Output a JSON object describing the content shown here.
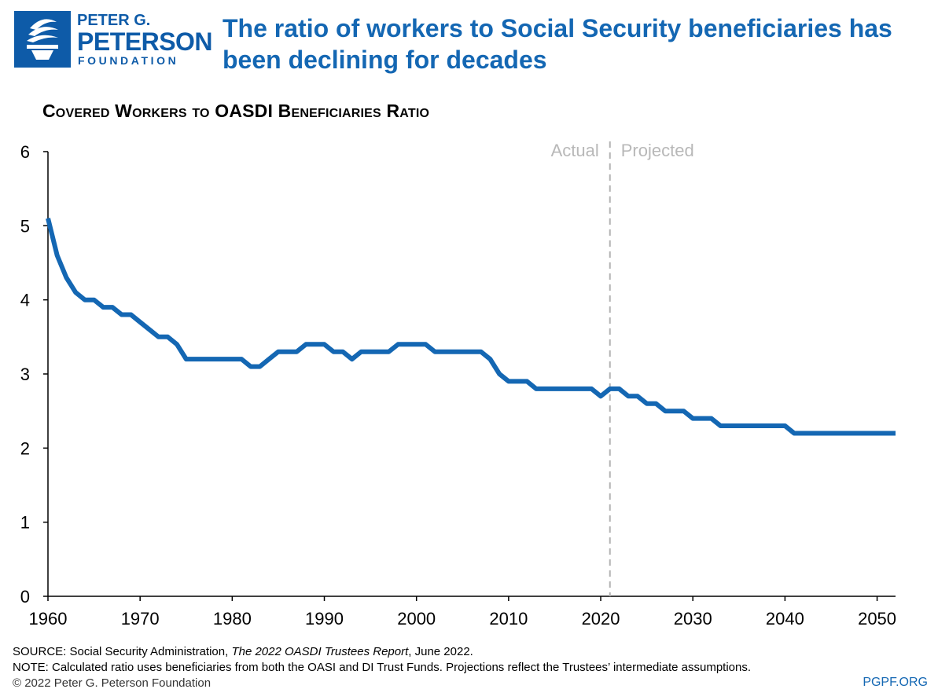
{
  "header": {
    "logo": {
      "line1": "PETER G.",
      "line2": "PETERSON",
      "line3": "FOUNDATION"
    },
    "title": "The ratio of workers to Social Security beneficiaries has been declining for decades"
  },
  "chart_data": {
    "type": "line",
    "title": "Covered Workers to OASDI Beneficiaries Ratio",
    "xlabel": "",
    "ylabel": "",
    "xlim": [
      1960,
      2052
    ],
    "ylim": [
      0,
      6
    ],
    "x_ticks": [
      1960,
      1970,
      1980,
      1990,
      2000,
      2010,
      2020,
      2030,
      2040,
      2050
    ],
    "y_ticks": [
      0,
      1,
      2,
      3,
      4,
      5,
      6
    ],
    "grid": false,
    "annotations": {
      "divider_year": 2021,
      "left_label": "Actual",
      "right_label": "Projected"
    },
    "series": [
      {
        "color": "#1467b3",
        "x": [
          1960,
          1961,
          1962,
          1963,
          1964,
          1965,
          1966,
          1967,
          1968,
          1969,
          1970,
          1971,
          1972,
          1973,
          1974,
          1975,
          1976,
          1977,
          1978,
          1979,
          1980,
          1981,
          1982,
          1983,
          1984,
          1985,
          1986,
          1987,
          1988,
          1989,
          1990,
          1991,
          1992,
          1993,
          1994,
          1995,
          1996,
          1997,
          1998,
          1999,
          2000,
          2001,
          2002,
          2003,
          2004,
          2005,
          2006,
          2007,
          2008,
          2009,
          2010,
          2011,
          2012,
          2013,
          2014,
          2015,
          2016,
          2017,
          2018,
          2019,
          2020,
          2021,
          2022,
          2023,
          2024,
          2025,
          2026,
          2027,
          2028,
          2029,
          2030,
          2031,
          2032,
          2033,
          2034,
          2035,
          2036,
          2037,
          2038,
          2039,
          2040,
          2041,
          2042,
          2043,
          2044,
          2045,
          2046,
          2047,
          2048,
          2049,
          2050,
          2051,
          2052
        ],
        "values": [
          5.1,
          4.6,
          4.3,
          4.1,
          4.0,
          4.0,
          3.9,
          3.9,
          3.8,
          3.8,
          3.7,
          3.6,
          3.5,
          3.5,
          3.4,
          3.2,
          3.2,
          3.2,
          3.2,
          3.2,
          3.2,
          3.2,
          3.1,
          3.1,
          3.2,
          3.3,
          3.3,
          3.3,
          3.4,
          3.4,
          3.4,
          3.3,
          3.3,
          3.2,
          3.3,
          3.3,
          3.3,
          3.3,
          3.4,
          3.4,
          3.4,
          3.4,
          3.3,
          3.3,
          3.3,
          3.3,
          3.3,
          3.3,
          3.2,
          3.0,
          2.9,
          2.9,
          2.9,
          2.8,
          2.8,
          2.8,
          2.8,
          2.8,
          2.8,
          2.8,
          2.7,
          2.8,
          2.8,
          2.7,
          2.7,
          2.6,
          2.6,
          2.5,
          2.5,
          2.5,
          2.4,
          2.4,
          2.4,
          2.3,
          2.3,
          2.3,
          2.3,
          2.3,
          2.3,
          2.3,
          2.3,
          2.2,
          2.2,
          2.2,
          2.2,
          2.2,
          2.2,
          2.2,
          2.2,
          2.2,
          2.2,
          2.2,
          2.2
        ]
      }
    ]
  },
  "footer": {
    "source_prefix": "SOURCE: Social Security Administration, ",
    "source_title": "The 2022 OASDI Trustees Report",
    "source_suffix": ", June 2022.",
    "note": "NOTE: Calculated ratio uses beneficiaries from both the OASI and DI Trust Funds. Projections reflect the Trustees’ intermediate assumptions.",
    "copyright": "© 2022 Peter G. Peterson Foundation",
    "site": "PGPF.ORG"
  }
}
